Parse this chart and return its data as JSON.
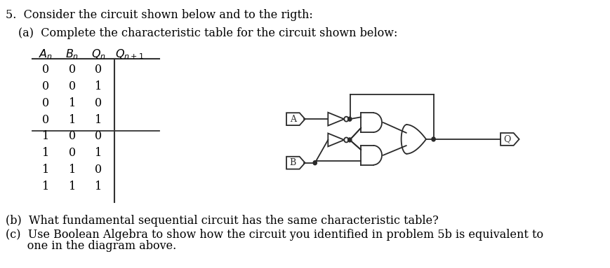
{
  "title_text": "5.  Consider the circuit shown below and to the rigth:",
  "part_a_text": "(a)  Complete the characteristic table for the circuit shown below:",
  "part_b_text": "(b)  What fundamental sequential circuit has the same characteristic table?",
  "part_c_text_1": "(c)  Use Boolean Algebra to show how the circuit you identified in problem 5b is equivalent to",
  "part_c_text_2": "      one in the diagram above.",
  "bg_color": "#ffffff",
  "text_color": "#000000",
  "line_color": "#333333",
  "font_size": 11.5,
  "table_data": [
    [
      0,
      0,
      0
    ],
    [
      0,
      0,
      1
    ],
    [
      0,
      1,
      0
    ],
    [
      0,
      1,
      1
    ],
    [
      1,
      0,
      0
    ],
    [
      1,
      0,
      1
    ],
    [
      1,
      1,
      0
    ],
    [
      1,
      1,
      1
    ]
  ]
}
